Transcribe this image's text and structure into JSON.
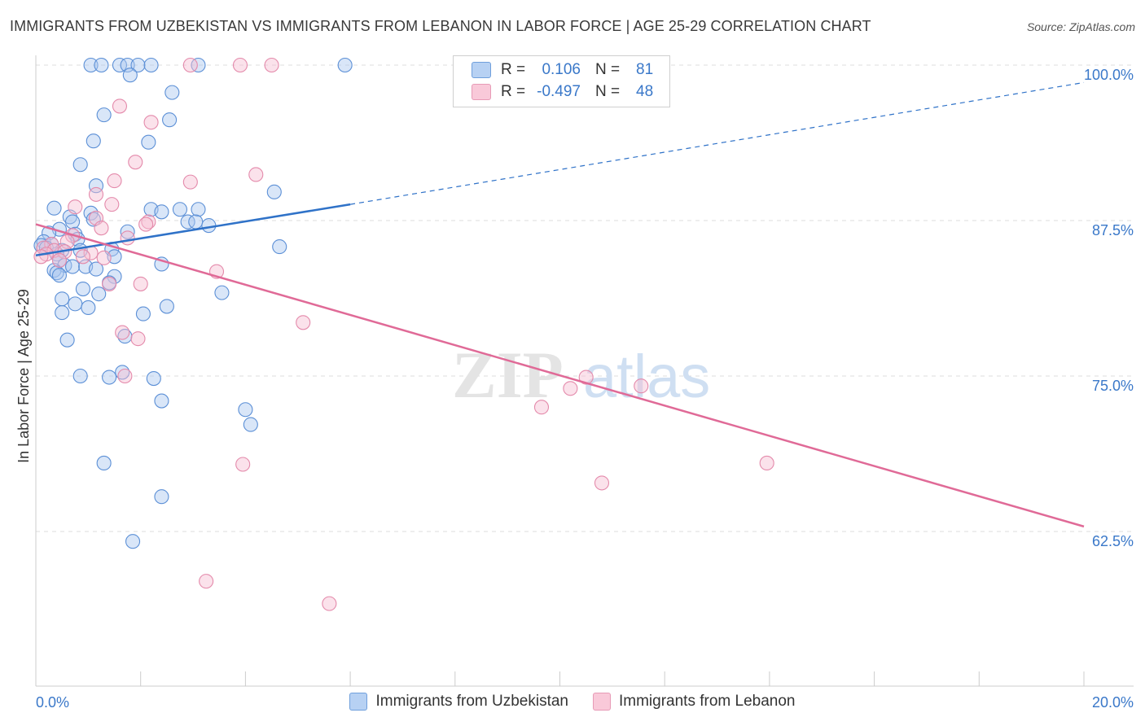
{
  "title": "IMMIGRANTS FROM UZBEKISTAN VS IMMIGRANTS FROM LEBANON IN LABOR FORCE | AGE 25-29 CORRELATION CHART",
  "source": "Source: ZipAtlas.com",
  "watermark": "ZIPatlas",
  "legend": {
    "r_label": "R =",
    "n_label": "N =",
    "series1": {
      "r": "0.106",
      "n": "81"
    },
    "series2": {
      "r": "-0.497",
      "n": "48"
    }
  },
  "colors": {
    "uzbekistan_fill": "#aac8f0",
    "uzbekistan_stroke": "#5b8fd6",
    "uzbekistan_line": "#2f72c8",
    "lebanon_fill": "#f7bfd2",
    "lebanon_stroke": "#e48aab",
    "lebanon_line": "#e06a97",
    "tick_label": "#3a78c9"
  },
  "chart_data": {
    "type": "scatter",
    "title": "IMMIGRANTS FROM UZBEKISTAN VS IMMIGRANTS FROM LEBANON IN LABOR FORCE | AGE 25-29 CORRELATION CHART",
    "xlabel": "",
    "ylabel": "In Labor Force | Age 25-29",
    "xlim": [
      0,
      20
    ],
    "ylim": [
      50,
      101.5
    ],
    "x_tick_labels": [
      "0.0%",
      "20.0%"
    ],
    "y_ticks": [
      62.5,
      75.0,
      87.5,
      100.0
    ],
    "y_tick_labels": [
      "62.5%",
      "75.0%",
      "87.5%",
      "100.0%"
    ],
    "grid": true,
    "series": [
      {
        "name": "Immigrants from Uzbekistan",
        "r": 0.106,
        "n": 81,
        "trend": {
          "x": [
            0,
            6
          ],
          "y": [
            84.7,
            88.8
          ],
          "dashed_to": [
            20,
            98.6
          ]
        },
        "points": [
          [
            1.05,
            100
          ],
          [
            1.25,
            100
          ],
          [
            1.6,
            100
          ],
          [
            1.75,
            100
          ],
          [
            1.95,
            100
          ],
          [
            2.2,
            100
          ],
          [
            3.1,
            100
          ],
          [
            5.9,
            100
          ],
          [
            1.8,
            99.2
          ],
          [
            2.6,
            97.8
          ],
          [
            1.3,
            96
          ],
          [
            2.55,
            95.6
          ],
          [
            1.1,
            93.9
          ],
          [
            2.15,
            93.8
          ],
          [
            0.85,
            92
          ],
          [
            1.15,
            90.3
          ],
          [
            4.55,
            89.8
          ],
          [
            0.35,
            88.5
          ],
          [
            2.2,
            88.4
          ],
          [
            2.75,
            88.4
          ],
          [
            3.1,
            88.4
          ],
          [
            1.05,
            88.1
          ],
          [
            2.4,
            88.2
          ],
          [
            0.65,
            87.8
          ],
          [
            1.1,
            87.6
          ],
          [
            0.7,
            87.4
          ],
          [
            2.9,
            87.4
          ],
          [
            3.05,
            87.4
          ],
          [
            3.3,
            87.1
          ],
          [
            0.45,
            86.8
          ],
          [
            1.75,
            86.6
          ],
          [
            0.25,
            86.5
          ],
          [
            0.75,
            86.4
          ],
          [
            0.8,
            86
          ],
          [
            0.15,
            85.8
          ],
          [
            0.3,
            85.6
          ],
          [
            0.1,
            85.5
          ],
          [
            0.2,
            85.3
          ],
          [
            0.5,
            85.1
          ],
          [
            0.85,
            85.1
          ],
          [
            1.45,
            85.2
          ],
          [
            4.65,
            85.4
          ],
          [
            0.4,
            84.8
          ],
          [
            1.5,
            84.6
          ],
          [
            0.45,
            84.3
          ],
          [
            0.55,
            83.9
          ],
          [
            0.7,
            83.8
          ],
          [
            0.95,
            83.8
          ],
          [
            2.4,
            84
          ],
          [
            0.35,
            83.5
          ],
          [
            0.4,
            83.3
          ],
          [
            1.15,
            83.6
          ],
          [
            1.5,
            83
          ],
          [
            0.45,
            83.1
          ],
          [
            1.4,
            82.5
          ],
          [
            0.9,
            82
          ],
          [
            1.2,
            81.6
          ],
          [
            3.55,
            81.7
          ],
          [
            0.5,
            81.2
          ],
          [
            0.75,
            80.8
          ],
          [
            2.5,
            80.6
          ],
          [
            1.0,
            80.5
          ],
          [
            0.5,
            80.1
          ],
          [
            2.05,
            80
          ],
          [
            1.7,
            78.2
          ],
          [
            0.6,
            77.9
          ],
          [
            1.65,
            75.3
          ],
          [
            0.85,
            75
          ],
          [
            1.4,
            74.9
          ],
          [
            2.25,
            74.8
          ],
          [
            2.4,
            73
          ],
          [
            4.0,
            72.3
          ],
          [
            4.1,
            71.1
          ],
          [
            1.3,
            68
          ],
          [
            2.4,
            65.3
          ],
          [
            1.85,
            61.7
          ]
        ]
      },
      {
        "name": "Immigrants from Lebanon",
        "r": -0.497,
        "n": 48,
        "trend": {
          "x": [
            0,
            20
          ],
          "y": [
            87.2,
            62.9
          ]
        },
        "points": [
          [
            2.95,
            100
          ],
          [
            3.9,
            100
          ],
          [
            4.5,
            100
          ],
          [
            1.6,
            96.7
          ],
          [
            2.2,
            95.4
          ],
          [
            1.9,
            92.2
          ],
          [
            4.2,
            91.2
          ],
          [
            1.5,
            90.7
          ],
          [
            2.95,
            90.6
          ],
          [
            1.15,
            89.6
          ],
          [
            0.75,
            88.6
          ],
          [
            1.45,
            88.8
          ],
          [
            1.15,
            87.7
          ],
          [
            2.15,
            87.4
          ],
          [
            2.1,
            87.2
          ],
          [
            1.25,
            86.9
          ],
          [
            0.7,
            86.3
          ],
          [
            1.75,
            86.1
          ],
          [
            0.6,
            85.8
          ],
          [
            0.3,
            85.6
          ],
          [
            0.15,
            85.3
          ],
          [
            0.35,
            85.1
          ],
          [
            0.55,
            85
          ],
          [
            1.05,
            84.9
          ],
          [
            0.2,
            84.8
          ],
          [
            0.1,
            84.6
          ],
          [
            0.9,
            84.6
          ],
          [
            1.3,
            84.5
          ],
          [
            0.45,
            84.3
          ],
          [
            3.45,
            83.4
          ],
          [
            1.4,
            82.4
          ],
          [
            2.0,
            82.4
          ],
          [
            5.1,
            79.3
          ],
          [
            1.65,
            78.5
          ],
          [
            1.95,
            78
          ],
          [
            1.7,
            75
          ],
          [
            10.5,
            74.9
          ],
          [
            11.55,
            74.2
          ],
          [
            10.2,
            74
          ],
          [
            9.65,
            72.5
          ],
          [
            3.95,
            67.9
          ],
          [
            13.95,
            68
          ],
          [
            10.8,
            66.4
          ],
          [
            3.25,
            58.5
          ],
          [
            5.6,
            56.7
          ]
        ]
      }
    ]
  }
}
